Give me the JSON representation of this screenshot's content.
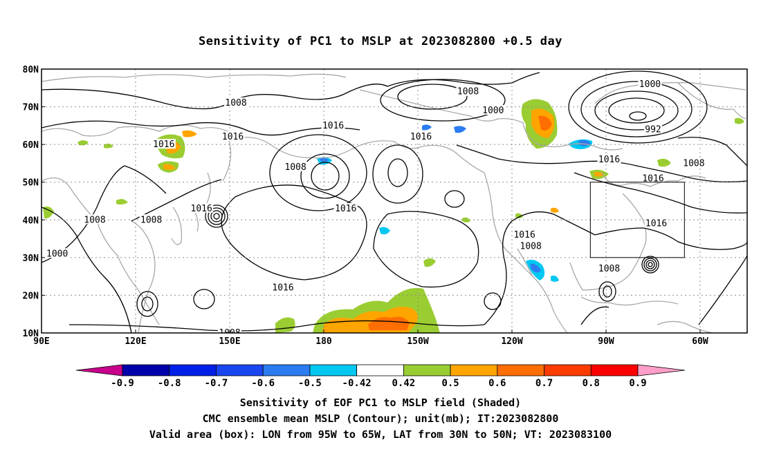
{
  "title": "Sensitivity of PC1 to MSLP at 2023082800 +0.5 day",
  "map": {
    "lat_labels": [
      "80N",
      "70N",
      "60N",
      "50N",
      "40N",
      "30N",
      "20N",
      "10N"
    ],
    "lon_labels": [
      "90E",
      "120E",
      "150E",
      "180",
      "150W",
      "120W",
      "90W",
      "60W"
    ],
    "contour_labels": [
      {
        "text": "1008",
        "lon": 152,
        "lat": 71
      },
      {
        "text": "1008",
        "lon": -134,
        "lat": 74
      },
      {
        "text": "1000",
        "lon": -126,
        "lat": 69
      },
      {
        "text": "1000",
        "lon": -76,
        "lat": 76
      },
      {
        "text": "992",
        "lon": -75,
        "lat": 64
      },
      {
        "text": "1016",
        "lon": 129,
        "lat": 60
      },
      {
        "text": "1016",
        "lon": 151,
        "lat": 62
      },
      {
        "text": "1016",
        "lon": -177,
        "lat": 65
      },
      {
        "text": "1016",
        "lon": -149,
        "lat": 62
      },
      {
        "text": "1016",
        "lon": -89,
        "lat": 56
      },
      {
        "text": "1008",
        "lon": -62,
        "lat": 55
      },
      {
        "text": "1016",
        "lon": -75,
        "lat": 51
      },
      {
        "text": "1008",
        "lon": 171,
        "lat": 54
      },
      {
        "text": "1016",
        "lon": 141,
        "lat": 43
      },
      {
        "text": "1008",
        "lon": 107,
        "lat": 40
      },
      {
        "text": "1008",
        "lon": 125,
        "lat": 40
      },
      {
        "text": "1016",
        "lon": -173,
        "lat": 43
      },
      {
        "text": "1016",
        "lon": -74,
        "lat": 39
      },
      {
        "text": "1016",
        "lon": -116,
        "lat": 36
      },
      {
        "text": "1008",
        "lon": -114,
        "lat": 33
      },
      {
        "text": "1000",
        "lon": 95,
        "lat": 31
      },
      {
        "text": "1016",
        "lon": 167,
        "lat": 22
      },
      {
        "text": "1008",
        "lon": -89,
        "lat": 27
      },
      {
        "text": "1008",
        "lon": 150,
        "lat": 10
      }
    ],
    "valid_box": {
      "lon_min": -95,
      "lon_max": -65,
      "lat_min": 30,
      "lat_max": 50
    }
  },
  "colorbar": {
    "labels": [
      "-0.9",
      "-0.8",
      "-0.7",
      "-0.6",
      "-0.5",
      "-0.42",
      "0.42",
      "0.5",
      "0.6",
      "0.7",
      "0.8",
      "0.9"
    ],
    "colors": [
      "#c8008c",
      "#0000aa",
      "#0020e8",
      "#1a46f0",
      "#2b7cf0",
      "#00c8f0",
      "#ffffff",
      "#9acd32",
      "#ffa500",
      "#ff6e00",
      "#ff3c00",
      "#ff0000",
      "#ff9ec8"
    ]
  },
  "captions": [
    "Sensitivity of EOF PC1 to MSLP field (Shaded)",
    "CMC ensemble mean MSLP (Contour); unit(mb); IT:2023082800",
    "Valid area (box): LON from 95W to 65W, LAT from 30N to 50N; VT: 2023083100"
  ]
}
